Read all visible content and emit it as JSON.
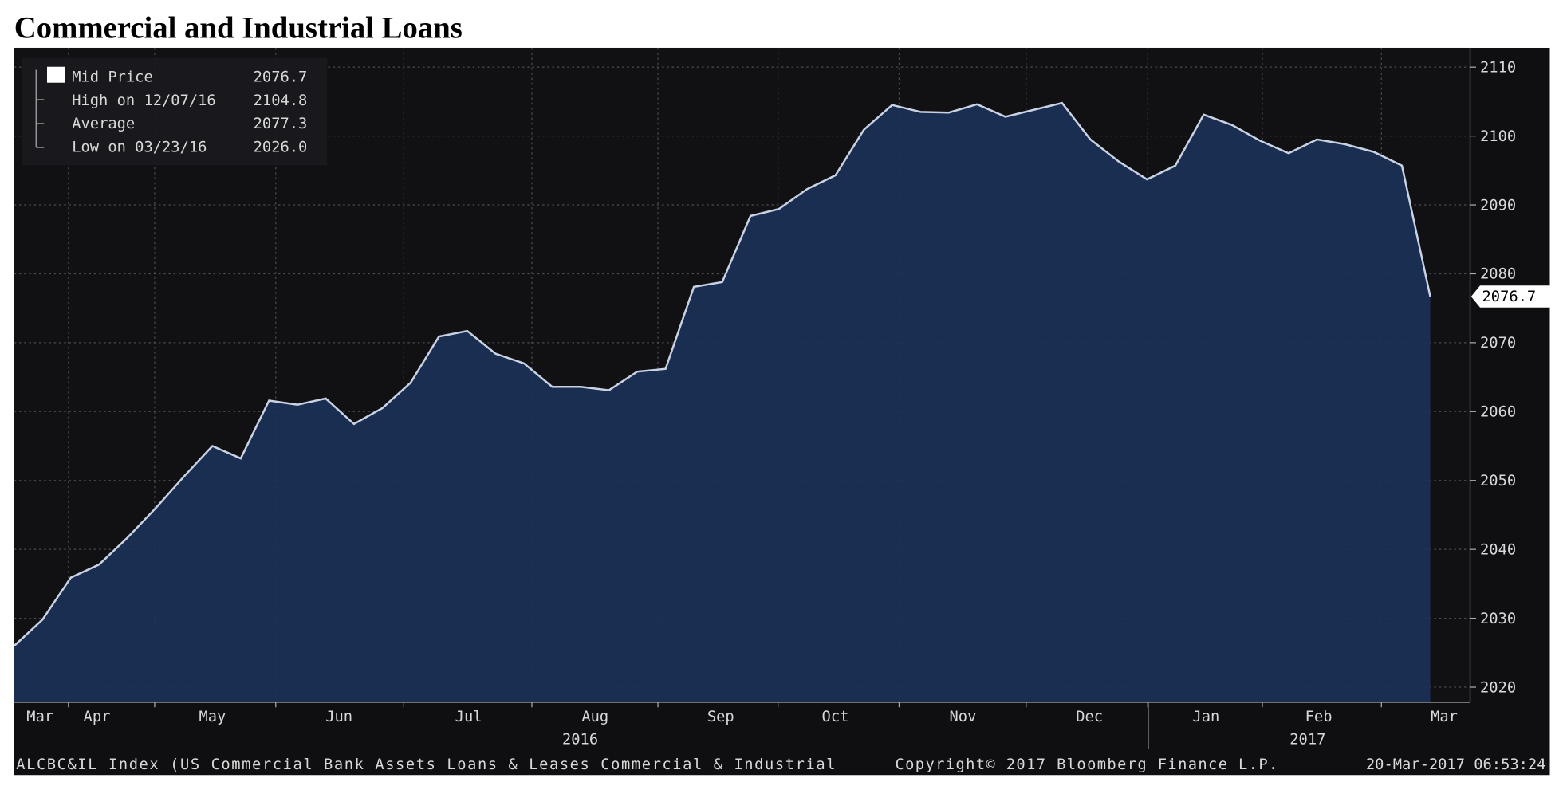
{
  "chart_data": {
    "type": "area",
    "title": "Commercial and Industrial Loans",
    "values": [
      2026.0,
      2029.8,
      2035.9,
      2037.8,
      2041.7,
      2046.0,
      2050.6,
      2055.0,
      2053.2,
      2061.6,
      2061.0,
      2061.9,
      2058.2,
      2060.5,
      2064.2,
      2070.9,
      2071.7,
      2068.4,
      2067.0,
      2063.6,
      2063.6,
      2063.1,
      2065.8,
      2066.2,
      2078.1,
      2078.8,
      2088.4,
      2089.4,
      2092.3,
      2094.3,
      2100.9,
      2104.5,
      2103.5,
      2103.4,
      2104.6,
      2102.8,
      2103.8,
      2104.8,
      2099.5,
      2096.3,
      2093.7,
      2095.7,
      2103.1,
      2101.6,
      2099.3,
      2097.5,
      2099.5,
      2098.8,
      2097.7,
      2095.7,
      2076.7
    ],
    "last_value_label": "2076.7",
    "line_color": "#c9d2e3",
    "fill_color": "#1b3055",
    "ylim": [
      2017.8,
      2112.8
    ],
    "yticks": [
      2020,
      2030,
      2040,
      2050,
      2060,
      2070,
      2080,
      2090,
      2100,
      2110
    ],
    "grid": true,
    "x_labels": [
      "Mar",
      "Apr",
      "May",
      "Jun",
      "Jul",
      "Aug",
      "Sep",
      "Oct",
      "Nov",
      "Dec",
      "Jan",
      "Feb",
      "Mar"
    ],
    "year_labels": [
      "2016",
      "2017"
    ],
    "legend": [
      {
        "name": "Mid Price",
        "value": "2076.7"
      },
      {
        "name": "High on 12/07/16",
        "value": "2104.8"
      },
      {
        "name": "Average",
        "value": "2077.3"
      },
      {
        "name": "Low on 03/23/16",
        "value": "2026.0"
      }
    ],
    "footer_left": "ALCBC&IL Index (US Commercial Bank Assets Loans & Leases Commercial & Industrial",
    "footer_center": "Copyright© 2017 Bloomberg Finance L.P.",
    "footer_right": "20-Mar-2017 06:53:24"
  }
}
